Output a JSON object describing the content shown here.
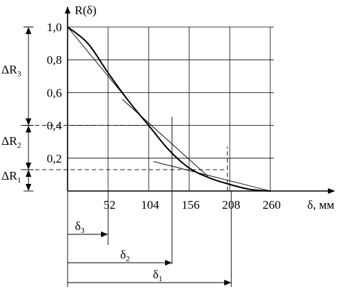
{
  "chart_data": {
    "type": "line",
    "title": "",
    "xlabel": "δ, мм",
    "ylabel": "R(δ)",
    "xlim": [
      0,
      260
    ],
    "ylim": [
      0,
      1.0
    ],
    "grid": true,
    "x_ticks": [
      {
        "value": 52,
        "label": "52"
      },
      {
        "value": 104,
        "label": "104"
      },
      {
        "value": 156,
        "label": "156"
      },
      {
        "value": 208,
        "label": "208"
      },
      {
        "value": 260,
        "label": "260"
      }
    ],
    "y_ticks": [
      {
        "value": 0.2,
        "label": "0,2"
      },
      {
        "value": 0.4,
        "label": "0,4"
      },
      {
        "value": 0.6,
        "label": "0,6"
      },
      {
        "value": 0.8,
        "label": "0,8"
      },
      {
        "value": 1.0,
        "label": "1,0"
      }
    ],
    "series": [
      {
        "x": [
          0,
          26,
          52,
          78,
          104,
          130,
          156,
          182,
          208,
          234,
          260
        ],
        "values": [
          1.0,
          0.9,
          0.72,
          0.55,
          0.4,
          0.25,
          0.14,
          0.08,
          0.04,
          0.01,
          0.0
        ]
      }
    ],
    "tangents": [
      {
        "x1": 0,
        "y1": 1.0,
        "x2": 104,
        "y2": 0.4
      },
      {
        "x1": 70,
        "y1": 0.56,
        "x2": 180,
        "y2": 0.09
      },
      {
        "x1": 110,
        "y1": 0.18,
        "x2": 260,
        "y2": 0.0
      }
    ],
    "dashed_guides": [
      {
        "x1": -60,
        "y1": 0.4,
        "x2": 104,
        "y2": 0.4
      },
      {
        "x1": -60,
        "y1": 0.13,
        "x2": 205,
        "y2": 0.13
      },
      {
        "x1": 205,
        "y1": 0.0,
        "x2": 205,
        "y2": 0.27
      }
    ],
    "annotations": {
      "intervals_y": [
        {
          "label": "ΔR",
          "sub": "3",
          "from": 1.0,
          "to": 0.4
        },
        {
          "label": "ΔR",
          "sub": "2",
          "from": 0.4,
          "to": 0.13
        },
        {
          "label": "ΔR",
          "sub": "1",
          "from": 0.13,
          "to": 0.0
        }
      ],
      "intervals_x": [
        {
          "label": "δ",
          "sub": "3",
          "to": 52
        },
        {
          "label": "δ",
          "sub": "2",
          "to": 134
        },
        {
          "label": "δ",
          "sub": "1",
          "to": 210
        }
      ]
    },
    "origin_marker_x": 134
  }
}
